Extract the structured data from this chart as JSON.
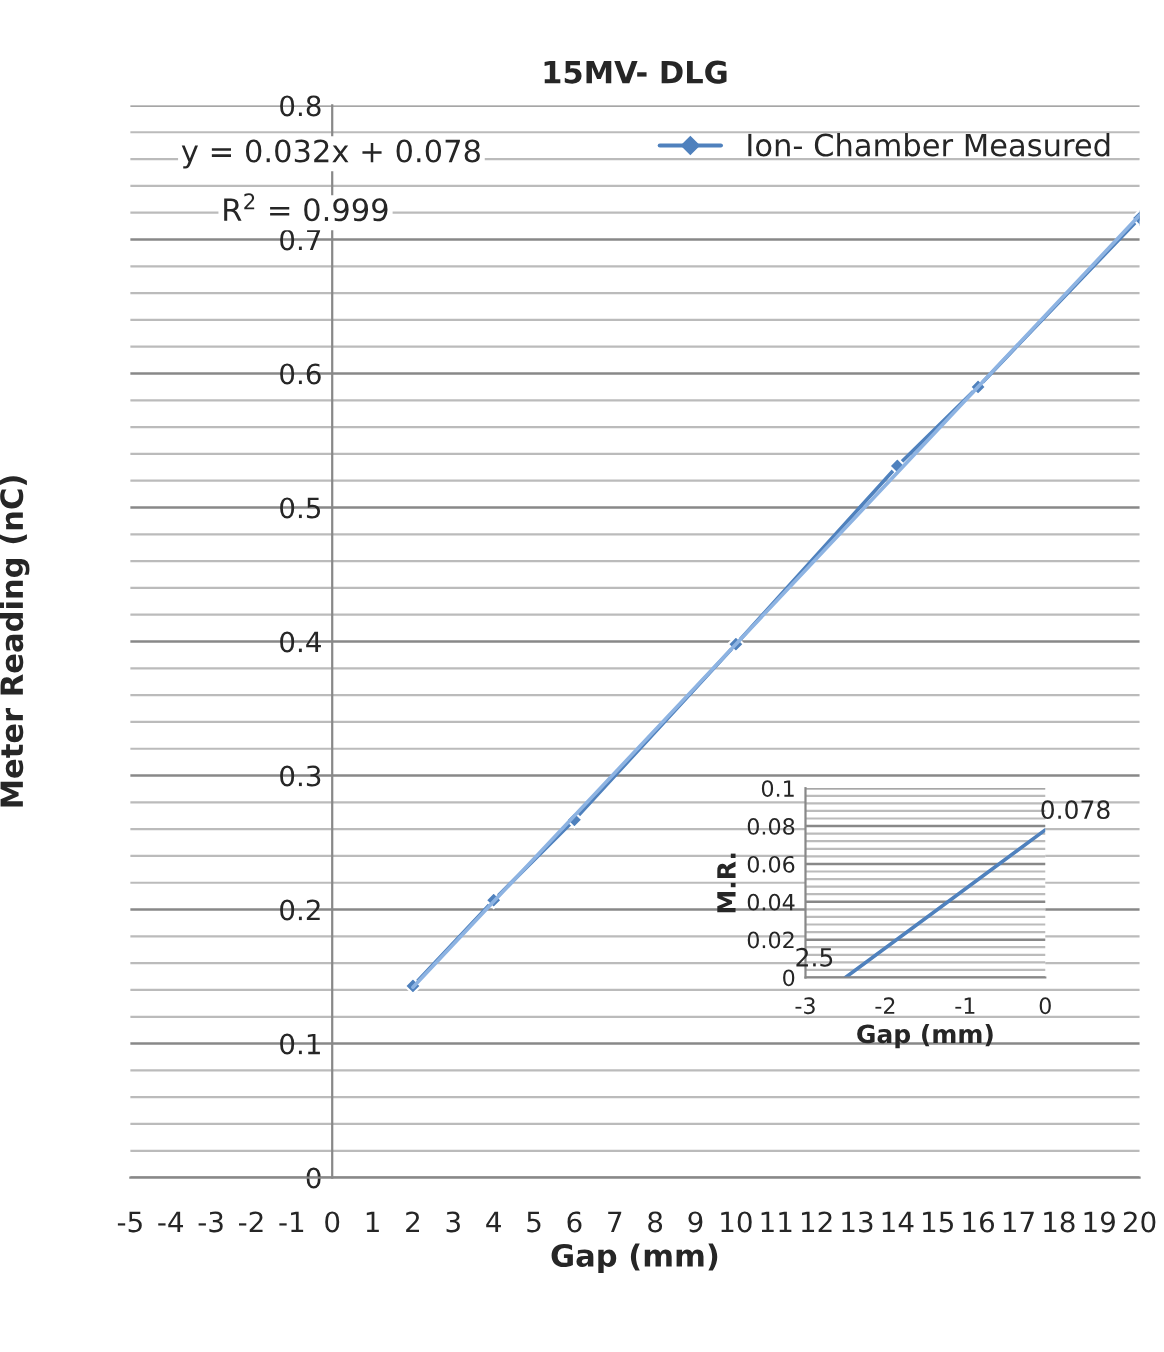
{
  "chart_data": [
    {
      "type": "line",
      "title": "15MV- DLG",
      "xlabel": "Gap (mm)",
      "ylabel": "Meter Reading (nC)",
      "series": [
        {
          "name": "Ion- Chamber Measured",
          "color": "#4f81bd",
          "x": [
            2,
            4,
            6,
            10,
            14,
            16,
            20
          ],
          "values": [
            0.143,
            0.207,
            0.267,
            0.398,
            0.531,
            0.59,
            0.716
          ],
          "marker": "diamond"
        },
        {
          "color": "#8db3e2",
          "x": [
            2,
            20
          ],
          "values": [
            0.142,
            0.718
          ]
        }
      ],
      "xlim": [
        -5,
        20
      ],
      "xticks": [
        -5,
        -4,
        -3,
        -2,
        -1,
        0,
        1,
        2,
        3,
        4,
        5,
        6,
        7,
        8,
        9,
        10,
        11,
        12,
        13,
        14,
        15,
        16,
        17,
        18,
        19,
        20
      ],
      "ylim": [
        0,
        0.8
      ],
      "yticks": [
        {
          "value": 0,
          "label": "0"
        },
        0.1,
        0.2,
        0.3,
        0.4,
        0.5,
        0.6,
        0.7,
        0.8
      ],
      "grid": "y",
      "legend": "top right",
      "annotations": [
        "y = 0.032x + 0.078",
        "R$^{2}$ = 0.999"
      ]
    },
    {
      "type": "line",
      "xlabel": "Gap (mm)",
      "ylabel": "M.R.",
      "series": [
        {
          "color": "#4f81bd",
          "x": [
            -2.5,
            0
          ],
          "values": [
            0,
            0.078
          ]
        }
      ],
      "xlim": [
        -3,
        0
      ],
      "xticks": [
        -3,
        -2,
        -1,
        0
      ],
      "ylim": [
        0,
        0.1
      ],
      "yticks": [
        0,
        0.02,
        0.04,
        0.06,
        0.08,
        0.1
      ],
      "grid": "y",
      "annotations": [
        {
          "text": "2.5",
          "x": -2.5,
          "y": 0
        },
        {
          "text": "0.078",
          "x": 0,
          "y": 0.078
        }
      ]
    }
  ]
}
